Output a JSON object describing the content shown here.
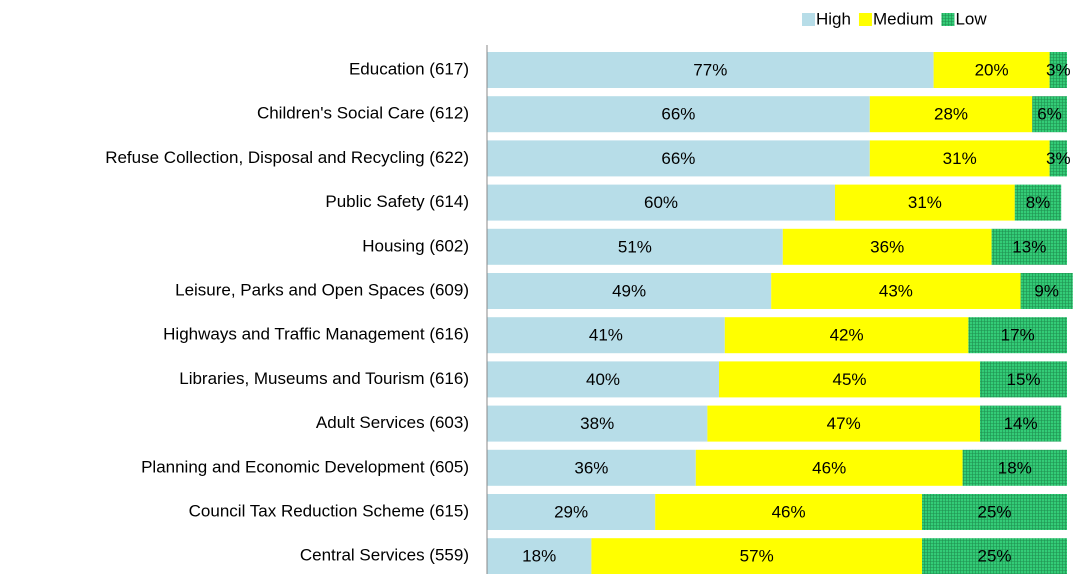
{
  "chart_data": {
    "type": "stacked-bar-horizontal",
    "categories": [
      "Education (617)",
      "Children's Social Care (612)",
      "Refuse Collection, Disposal and Recycling (622)",
      "Public Safety (614)",
      "Housing (602)",
      "Leisure, Parks and Open Spaces (609)",
      "Highways and Traffic Management  (616)",
      "Libraries, Museums and Tourism (616)",
      "Adult Services (603)",
      "Planning and Economic Development (605)",
      "Council Tax Reduction Scheme (615)",
      "Central Services (559)"
    ],
    "series": [
      {
        "name": "High",
        "color": "#b7dde8",
        "values": [
          77,
          66,
          66,
          60,
          51,
          49,
          41,
          40,
          38,
          36,
          29,
          18
        ],
        "value_labels": [
          "77%",
          "66%",
          "66%",
          "60%",
          "51%",
          "49%",
          "41%",
          "40%",
          "38%",
          "36%",
          "29%",
          "18%"
        ]
      },
      {
        "name": "Medium",
        "color": "#ffff00",
        "values": [
          20,
          28,
          31,
          31,
          36,
          43,
          42,
          45,
          47,
          46,
          46,
          57
        ],
        "value_labels": [
          "20%",
          "28%",
          "31%",
          "31%",
          "36%",
          "43%",
          "42%",
          "45%",
          "47%",
          "46%",
          "46%",
          "57%"
        ]
      },
      {
        "name": "Low",
        "color": "#33cc77",
        "values": [
          3,
          6,
          3,
          8,
          13,
          9,
          17,
          15,
          14,
          18,
          25,
          25
        ],
        "value_labels": [
          "3%",
          "6%",
          "3%",
          "8%",
          "13%",
          "9%",
          "17%",
          "15%",
          "14%",
          "18%",
          "25%",
          "25%"
        ]
      }
    ],
    "xlim": [
      0,
      100
    ],
    "legend": "top"
  }
}
